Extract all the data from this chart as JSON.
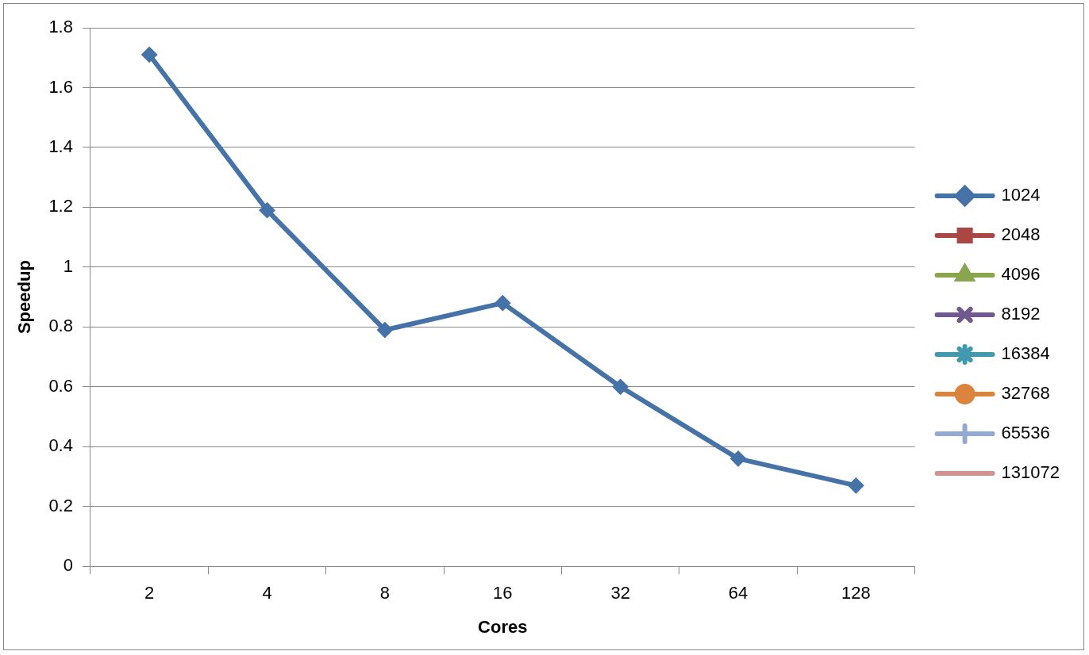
{
  "chart_data": {
    "type": "line",
    "categories": [
      "2",
      "4",
      "8",
      "16",
      "32",
      "64",
      "128"
    ],
    "xlabel": "Cores",
    "ylabel": "Speedup",
    "ylim": [
      0,
      1.8
    ],
    "yticks": [
      0,
      0.2,
      0.4,
      0.6,
      0.8,
      1,
      1.2,
      1.4,
      1.6,
      1.8
    ],
    "grid": "y",
    "legend": "right",
    "series": [
      {
        "name": "1024",
        "color": "#4572a7",
        "marker": "diamond",
        "values": [
          1.71,
          1.19,
          0.79,
          0.88,
          0.6,
          0.36,
          0.27
        ]
      },
      {
        "name": "2048",
        "color": "#aa4643",
        "marker": "square",
        "values": [
          null,
          null,
          null,
          null,
          null,
          null,
          null
        ]
      },
      {
        "name": "4096",
        "color": "#89a54e",
        "marker": "triangle",
        "values": [
          null,
          null,
          null,
          null,
          null,
          null,
          null
        ]
      },
      {
        "name": "8192",
        "color": "#71588f",
        "marker": "cross",
        "values": [
          null,
          null,
          null,
          null,
          null,
          null,
          null
        ]
      },
      {
        "name": "16384",
        "color": "#4198af",
        "marker": "star",
        "values": [
          null,
          null,
          null,
          null,
          null,
          null,
          null
        ]
      },
      {
        "name": "32768",
        "color": "#db843d",
        "marker": "circle",
        "values": [
          null,
          null,
          null,
          null,
          null,
          null,
          null
        ]
      },
      {
        "name": "65536",
        "color": "#93a9cf",
        "marker": "plus",
        "values": [
          null,
          null,
          null,
          null,
          null,
          null,
          null
        ]
      },
      {
        "name": "131072",
        "color": "#d19392",
        "marker": "none",
        "values": [
          null,
          null,
          null,
          null,
          null,
          null,
          null
        ]
      }
    ]
  }
}
